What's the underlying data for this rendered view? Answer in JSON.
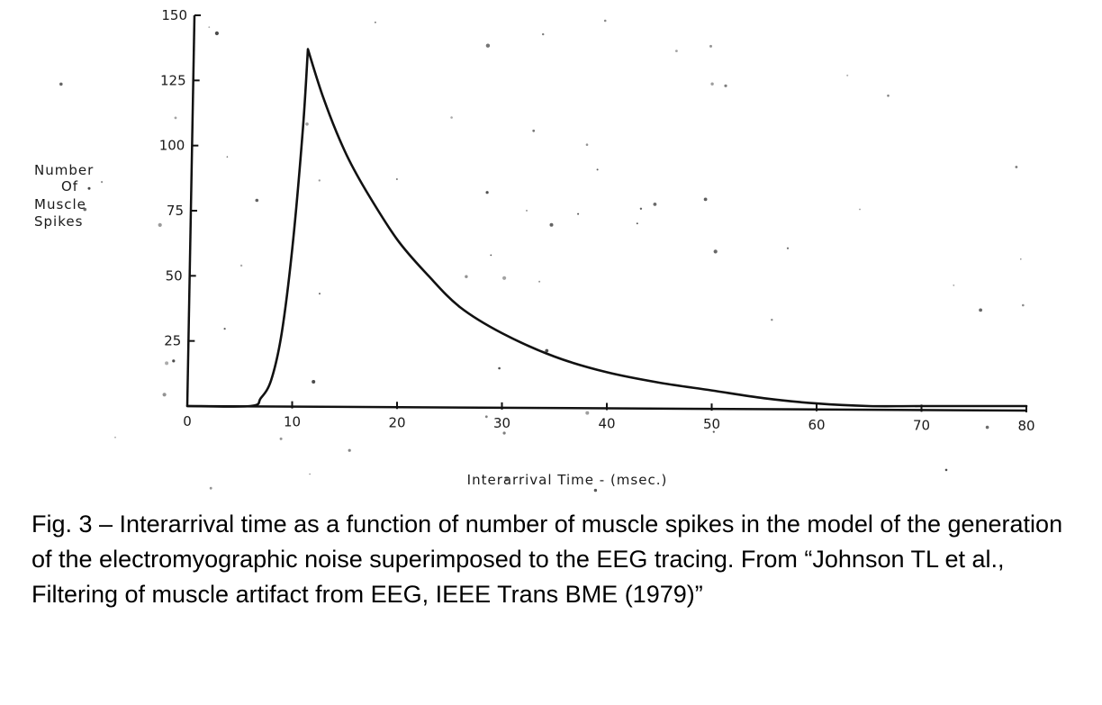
{
  "chart_data": {
    "type": "line",
    "xlabel": "Interarrival Time  -  (msec.)",
    "ylabel_lines": [
      "Number",
      "Of",
      "Muscle",
      "Spikes"
    ],
    "xlim": [
      0,
      80
    ],
    "ylim": [
      0,
      150
    ],
    "x_ticks": [
      0,
      10,
      20,
      30,
      40,
      50,
      60,
      70,
      80
    ],
    "y_ticks": [
      25,
      50,
      75,
      100,
      125,
      150
    ],
    "grid": false,
    "legend": "none",
    "line_color": "#111111",
    "series": [
      {
        "x": [
          0,
          6,
          7,
          8,
          9,
          10,
          11,
          11.5,
          13,
          15,
          17,
          20,
          23,
          26,
          30,
          35,
          40,
          45,
          50,
          55,
          60,
          65,
          70,
          80
        ],
        "y": [
          0,
          0,
          3,
          10,
          28,
          60,
          105,
          137,
          118,
          98,
          83,
          64,
          50,
          38,
          28,
          19,
          13,
          9,
          6,
          3,
          1,
          0,
          0,
          0
        ]
      }
    ]
  },
  "caption": "Fig. 3 – Interarrival time as a function of number of muscle spikes in the model of the generation of the electromyographic noise superimposed to the EEG tracing. From “Johnson TL et al., Filtering of muscle artifact from EEG, IEEE Trans BME (1979)”"
}
